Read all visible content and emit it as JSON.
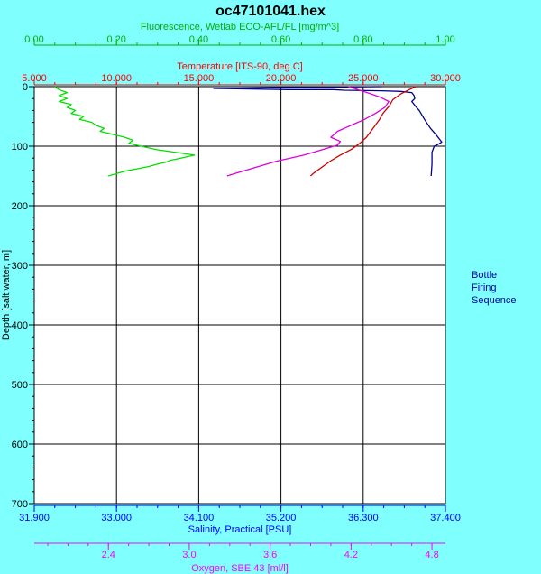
{
  "chart_data": {
    "type": "line",
    "title": "oc47101041.hex",
    "colors": {
      "background": "#80ffff",
      "plot_area": "#ffffff",
      "grid": "#000000"
    },
    "y_axis": {
      "label": "Depth [salt water, m]",
      "range": [
        0,
        700
      ],
      "ticks": [
        "0",
        "100",
        "200",
        "300",
        "400",
        "500",
        "600",
        "700"
      ],
      "reversed": true
    },
    "axes": {
      "fluorescence": {
        "label": "Fluorescence, Wetlab ECO-AFL/FL [mg/m^3]",
        "range": [
          0,
          1
        ],
        "ticks": [
          "0.00",
          "0.20",
          "0.40",
          "0.60",
          "0.80",
          "1.00"
        ],
        "color": "#00b000",
        "position": "top-outer"
      },
      "temperature": {
        "label": "Temperature [ITS-90, deg C]",
        "range": [
          5,
          30
        ],
        "ticks": [
          "5.000",
          "10.000",
          "15.000",
          "20.000",
          "25.000",
          "30.000"
        ],
        "color": "#ff0000",
        "position": "top-inner"
      },
      "salinity": {
        "label": "Salinity, Practical [PSU]",
        "range": [
          31.9,
          37.4
        ],
        "ticks": [
          "31.900",
          "33.000",
          "34.100",
          "35.200",
          "36.300",
          "37.400"
        ],
        "color": "#0000ff",
        "position": "bottom-inner"
      },
      "oxygen": {
        "label": "Oxygen, SBE 43 [ml/l]",
        "range": [
          1.85,
          4.9
        ],
        "ticks": [
          "2.4",
          "3.0",
          "3.6",
          "4.2",
          "4.8"
        ],
        "color": "#ff00ff",
        "position": "bottom-outer"
      }
    },
    "grid": true,
    "legend": {
      "position": "right",
      "lines": [
        "Bottle",
        "Firing",
        "Sequence"
      ]
    },
    "series": [
      {
        "axis": "salinity",
        "color": "#00008b",
        "points": [
          [
            36.55,
            0
          ],
          [
            35.6,
            1
          ],
          [
            34.3,
            3
          ],
          [
            34.8,
            4
          ],
          [
            35.3,
            5
          ],
          [
            35.9,
            5
          ],
          [
            36.05,
            6
          ],
          [
            36.55,
            7
          ],
          [
            36.8,
            8
          ],
          [
            36.95,
            10
          ],
          [
            36.98,
            15
          ],
          [
            36.99,
            20
          ],
          [
            36.95,
            25
          ],
          [
            36.97,
            28
          ],
          [
            37.0,
            33
          ],
          [
            37.05,
            40
          ],
          [
            37.12,
            55
          ],
          [
            37.2,
            70
          ],
          [
            37.27,
            80
          ],
          [
            37.32,
            88
          ],
          [
            37.35,
            93
          ],
          [
            37.3,
            97
          ],
          [
            37.25,
            100
          ],
          [
            37.22,
            110
          ],
          [
            37.22,
            130
          ],
          [
            37.21,
            150
          ]
        ]
      },
      {
        "axis": "temperature",
        "color": "#cc0000",
        "points": [
          [
            28.2,
            0
          ],
          [
            27.8,
            5
          ],
          [
            27.3,
            12
          ],
          [
            26.8,
            22
          ],
          [
            26.6,
            32
          ],
          [
            26.2,
            45
          ],
          [
            26.0,
            55
          ],
          [
            25.6,
            70
          ],
          [
            25.2,
            85
          ],
          [
            24.8,
            95
          ],
          [
            24.3,
            105
          ],
          [
            23.6,
            115
          ],
          [
            23.0,
            125
          ],
          [
            22.5,
            135
          ],
          [
            22.0,
            145
          ],
          [
            21.8,
            150
          ]
        ]
      },
      {
        "axis": "oxygen",
        "color": "#dd00dd",
        "points": [
          [
            4.18,
            0
          ],
          [
            4.25,
            5
          ],
          [
            4.32,
            10
          ],
          [
            4.42,
            18
          ],
          [
            4.48,
            25
          ],
          [
            4.45,
            35
          ],
          [
            4.38,
            45
          ],
          [
            4.3,
            55
          ],
          [
            4.2,
            65
          ],
          [
            4.1,
            75
          ],
          [
            4.05,
            85
          ],
          [
            4.12,
            92
          ],
          [
            4.1,
            98
          ],
          [
            4.0,
            105
          ],
          [
            3.85,
            115
          ],
          [
            3.65,
            125
          ],
          [
            3.5,
            135
          ],
          [
            3.35,
            145
          ],
          [
            3.28,
            150
          ]
        ]
      },
      {
        "axis": "fluorescence",
        "color": "#00e000",
        "points": [
          [
            0.05,
            0
          ],
          [
            0.06,
            5
          ],
          [
            0.08,
            10
          ],
          [
            0.06,
            15
          ],
          [
            0.08,
            20
          ],
          [
            0.06,
            25
          ],
          [
            0.09,
            30
          ],
          [
            0.08,
            35
          ],
          [
            0.1,
            40
          ],
          [
            0.09,
            45
          ],
          [
            0.12,
            50
          ],
          [
            0.11,
            55
          ],
          [
            0.14,
            60
          ],
          [
            0.15,
            65
          ],
          [
            0.17,
            70
          ],
          [
            0.16,
            75
          ],
          [
            0.19,
            80
          ],
          [
            0.22,
            85
          ],
          [
            0.24,
            90
          ],
          [
            0.23,
            95
          ],
          [
            0.26,
            100
          ],
          [
            0.28,
            103
          ],
          [
            0.3,
            106
          ],
          [
            0.33,
            109
          ],
          [
            0.36,
            112
          ],
          [
            0.39,
            115
          ],
          [
            0.37,
            118
          ],
          [
            0.35,
            121
          ],
          [
            0.33,
            124
          ],
          [
            0.32,
            127
          ],
          [
            0.3,
            130
          ],
          [
            0.28,
            134
          ],
          [
            0.25,
            138
          ],
          [
            0.22,
            142
          ],
          [
            0.2,
            146
          ],
          [
            0.18,
            150
          ]
        ]
      }
    ]
  }
}
